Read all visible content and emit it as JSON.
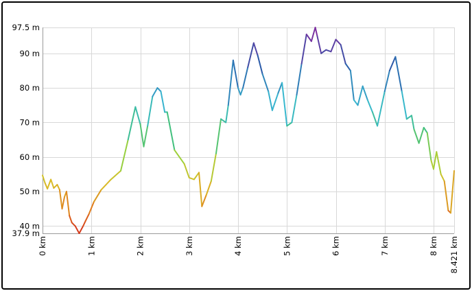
{
  "chart_data": {
    "type": "line",
    "title": "",
    "xlabel": "",
    "ylabel": "",
    "grid": true,
    "legend": "none",
    "xlim": [
      0,
      8.421
    ],
    "ylim": [
      37.9,
      97.5
    ],
    "x_ticks": [
      {
        "value": 0,
        "label": "0 km"
      },
      {
        "value": 1,
        "label": "1 km"
      },
      {
        "value": 2,
        "label": "2 km"
      },
      {
        "value": 3,
        "label": "3 km"
      },
      {
        "value": 4,
        "label": "4 km"
      },
      {
        "value": 5,
        "label": "5 km"
      },
      {
        "value": 6,
        "label": "6 km"
      },
      {
        "value": 7,
        "label": "7 km"
      },
      {
        "value": 8,
        "label": "8 km"
      },
      {
        "value": 8.421,
        "label": "8.421 km"
      }
    ],
    "y_ticks": [
      {
        "value": 37.9,
        "label": "37.9 m"
      },
      {
        "value": 40,
        "label": "40 m"
      },
      {
        "value": 50,
        "label": "50 m"
      },
      {
        "value": 60,
        "label": "60 m"
      },
      {
        "value": 70,
        "label": "70 m"
      },
      {
        "value": 80,
        "label": "80 m"
      },
      {
        "value": 90,
        "label": "90 m"
      },
      {
        "value": 97.5,
        "label": "97.5 m"
      }
    ],
    "colors": {
      "low": "#d2301c",
      "low_mid": "#e07a1c",
      "mid_low": "#d8c028",
      "mid": "#9ed03a",
      "mid_high": "#40c080",
      "high_mid": "#38b8d0",
      "high": "#2a5aa8",
      "top": "#8a2aa0"
    },
    "series": [
      {
        "x": [
          0,
          0.05,
          0.1,
          0.17,
          0.23,
          0.3,
          0.35,
          0.4,
          0.45,
          0.49,
          0.55,
          0.6,
          0.67,
          0.75,
          0.83,
          0.88,
          0.95,
          1.05,
          1.2,
          1.4,
          1.6,
          1.75,
          1.9,
          2.0,
          2.07,
          2.15,
          2.25,
          2.35,
          2.42,
          2.5,
          2.55,
          2.7,
          2.9,
          3.0,
          3.1,
          3.2,
          3.26,
          3.35,
          3.45,
          3.55,
          3.65,
          3.75,
          3.8,
          3.9,
          4.0,
          4.05,
          4.1,
          4.2,
          4.32,
          4.4,
          4.5,
          4.62,
          4.7,
          4.82,
          4.9,
          5.0,
          5.1,
          5.2,
          5.3,
          5.4,
          5.5,
          5.58,
          5.62,
          5.7,
          5.8,
          5.9,
          6.0,
          6.1,
          6.2,
          6.3,
          6.37,
          6.45,
          6.55,
          6.65,
          6.75,
          6.85,
          7.0,
          7.1,
          7.22,
          7.35,
          7.45,
          7.55,
          7.6,
          7.7,
          7.8,
          7.87,
          7.95,
          8.0,
          8.06,
          8.15,
          8.22,
          8.3,
          8.35,
          8.421
        ],
        "y": [
          54.7,
          52.5,
          50.8,
          53.5,
          51.0,
          52.0,
          50.5,
          45.0,
          48.5,
          50.0,
          43.0,
          41.0,
          40.0,
          37.9,
          40.0,
          41.5,
          43.5,
          47.0,
          50.5,
          53.5,
          56.0,
          65.0,
          74.5,
          69.5,
          63.0,
          69.0,
          77.5,
          80.0,
          79.0,
          73.0,
          73.0,
          62.0,
          58.0,
          54.0,
          53.5,
          55.5,
          45.7,
          49.0,
          53.0,
          61.0,
          71.0,
          70.0,
          75.0,
          88.0,
          80.0,
          78.0,
          80.0,
          86.0,
          93.0,
          89.5,
          84.0,
          79.0,
          73.5,
          78.5,
          81.5,
          69.0,
          70.0,
          78.0,
          87.0,
          95.5,
          93.5,
          97.5,
          95.0,
          90.0,
          91.0,
          90.5,
          94.0,
          92.5,
          87.0,
          85.0,
          76.5,
          75.0,
          80.5,
          76.5,
          73.0,
          69.0,
          79.0,
          85.0,
          89.0,
          79.0,
          71.0,
          72.0,
          68.0,
          64.0,
          68.5,
          67.0,
          59.0,
          56.5,
          61.5,
          55.0,
          53.0,
          44.5,
          43.8,
          56.0
        ]
      }
    ]
  }
}
